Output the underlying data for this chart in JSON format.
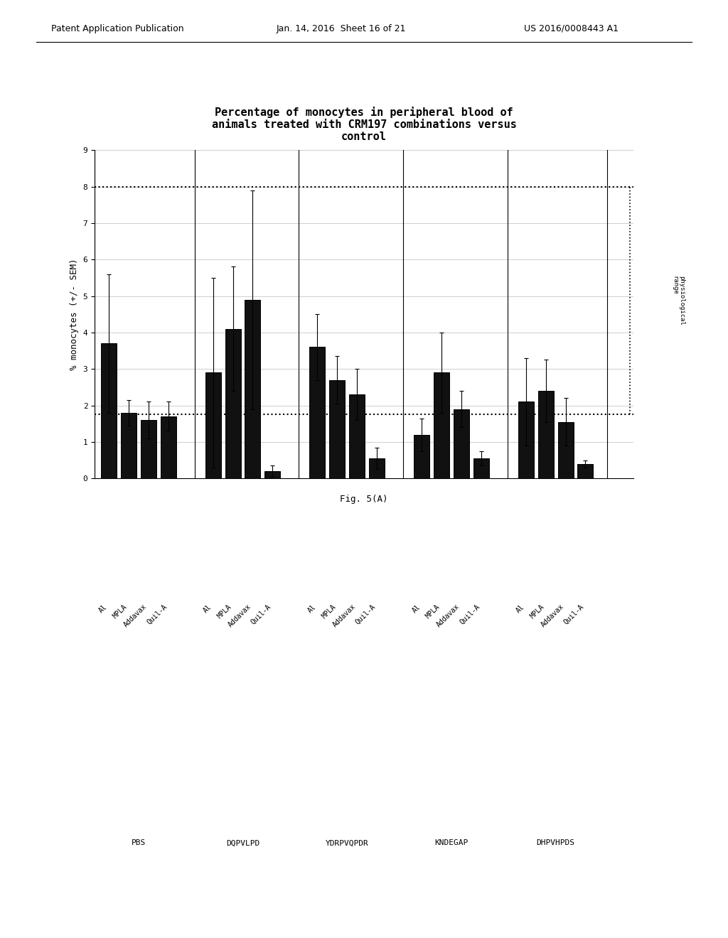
{
  "title_line1": "Percentage of monocytes in peripheral blood of",
  "title_line2": "animals treated with CRM197 combinations versus",
  "title_line3": "control",
  "ylabel": "% monocytes (+/- SEM)",
  "fig_label": "Fig. 5(A)",
  "ylim": [
    0,
    9
  ],
  "yticks": [
    0,
    1,
    2,
    3,
    4,
    5,
    6,
    7,
    8,
    9
  ],
  "groups": [
    "PBS",
    "DQPVLPD",
    "YDRPVQPDR",
    "KNDEGAP",
    "DHPVHPDS"
  ],
  "subgroups": [
    "Al",
    "MPLA",
    "Addavax",
    "Quil-A"
  ],
  "bar_values": [
    [
      3.7,
      1.8,
      1.6,
      1.7
    ],
    [
      2.9,
      4.1,
      4.9,
      0.2
    ],
    [
      3.6,
      2.7,
      2.3,
      0.55
    ],
    [
      1.2,
      2.9,
      1.9,
      0.55
    ],
    [
      2.1,
      2.4,
      1.55,
      0.4
    ]
  ],
  "bar_errors": [
    [
      1.9,
      0.35,
      0.5,
      0.4
    ],
    [
      2.6,
      1.7,
      3.0,
      0.15
    ],
    [
      0.9,
      0.65,
      0.7,
      0.3
    ],
    [
      0.45,
      1.1,
      0.5,
      0.2
    ],
    [
      1.2,
      0.85,
      0.65,
      0.1
    ]
  ],
  "dotted_lower": 1.75,
  "dotted_upper": 8.0,
  "physiological_label": "physiological\nrange",
  "bar_color": "#111111",
  "background_color": "#ffffff",
  "title_fontsize": 11,
  "axis_fontsize": 9,
  "tick_fontsize": 8,
  "header_left": "Patent Application Publication",
  "header_mid": "Jan. 14, 2016  Sheet 16 of 21",
  "header_right": "US 2016/0008443 A1"
}
